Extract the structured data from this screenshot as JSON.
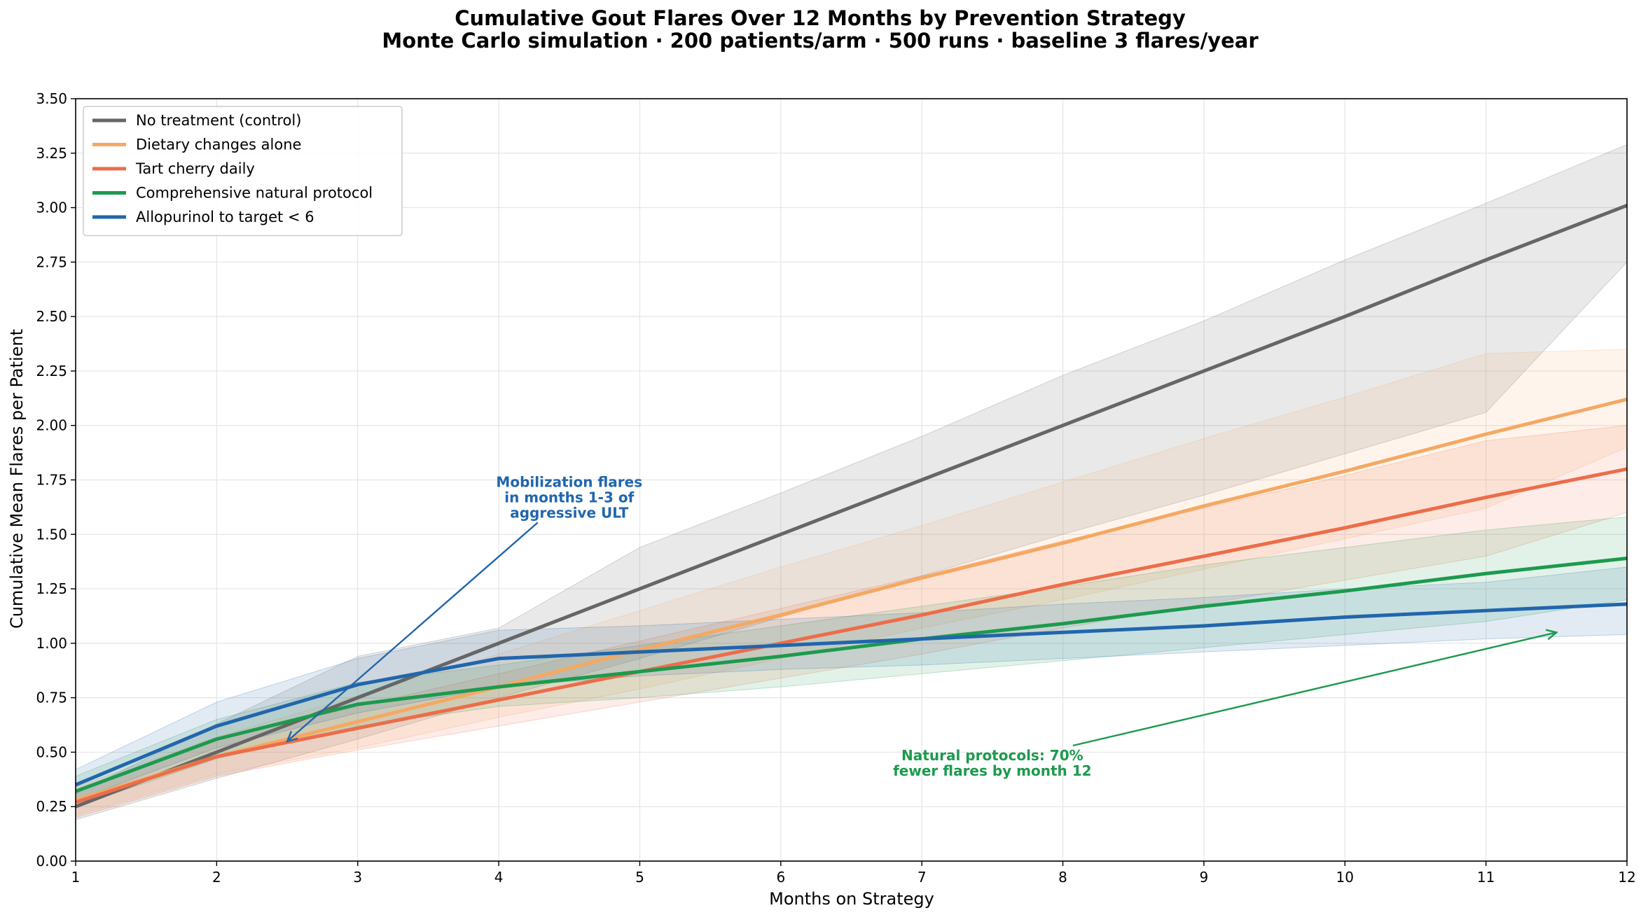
{
  "chart_data": {
    "type": "line",
    "title": "Cumulative Gout Flares Over 12 Months by Prevention Strategy",
    "subtitle": "Monte Carlo simulation · 200 patients/arm · 500 runs · baseline 3 flares/year",
    "xlabel": "Months on Strategy",
    "ylabel": "Cumulative Mean Flares per Patient",
    "xlim": [
      1,
      12
    ],
    "ylim": [
      0,
      3.5
    ],
    "xticks": [
      "1",
      "2",
      "3",
      "4",
      "5",
      "6",
      "7",
      "8",
      "9",
      "10",
      "11",
      "12"
    ],
    "yticks": [
      "0.00",
      "0.25",
      "0.50",
      "0.75",
      "1.00",
      "1.25",
      "1.50",
      "1.75",
      "2.00",
      "2.25",
      "2.50",
      "2.75",
      "3.00",
      "3.25",
      "3.50"
    ],
    "grid": true,
    "legend_position": "top-left",
    "x": [
      1,
      2,
      3,
      4,
      5,
      6,
      7,
      8,
      9,
      10,
      11,
      12
    ],
    "series": [
      {
        "name": "No treatment (control)",
        "color": "#666666",
        "values": [
          0.25,
          0.5,
          0.75,
          1.0,
          1.25,
          1.5,
          1.75,
          2.0,
          2.25,
          2.5,
          2.76,
          3.01
        ],
        "lower": [
          0.19,
          0.38,
          0.56,
          0.75,
          0.93,
          1.12,
          1.31,
          1.5,
          1.68,
          1.87,
          2.06,
          2.75
        ],
        "upper": [
          0.31,
          0.63,
          0.94,
          1.07,
          1.44,
          1.69,
          1.95,
          2.23,
          2.48,
          2.76,
          3.02,
          3.29
        ]
      },
      {
        "name": "Dietary changes alone",
        "color": "#f5a862",
        "values": [
          0.28,
          0.48,
          0.64,
          0.8,
          0.97,
          1.13,
          1.3,
          1.46,
          1.63,
          1.79,
          1.96,
          2.12
        ],
        "lower": [
          0.21,
          0.4,
          0.52,
          0.66,
          0.79,
          0.93,
          1.07,
          1.2,
          1.34,
          1.48,
          1.62,
          1.9
        ],
        "upper": [
          0.34,
          0.57,
          0.76,
          0.95,
          1.15,
          1.35,
          1.54,
          1.74,
          1.94,
          2.13,
          2.33,
          2.35
        ]
      },
      {
        "name": "Tart cherry daily",
        "color": "#ec6d49",
        "values": [
          0.27,
          0.48,
          0.61,
          0.74,
          0.87,
          1.0,
          1.13,
          1.27,
          1.4,
          1.53,
          1.67,
          1.8
        ],
        "lower": [
          0.2,
          0.39,
          0.51,
          0.62,
          0.73,
          0.84,
          0.95,
          1.07,
          1.18,
          1.29,
          1.4,
          1.6
        ],
        "upper": [
          0.33,
          0.56,
          0.71,
          0.86,
          1.01,
          1.16,
          1.31,
          1.47,
          1.62,
          1.77,
          1.93,
          2.0
        ]
      },
      {
        "name": "Comprehensive natural protocol",
        "color": "#1c9a4e",
        "values": [
          0.32,
          0.56,
          0.72,
          0.8,
          0.87,
          0.94,
          1.02,
          1.09,
          1.17,
          1.24,
          1.32,
          1.39
        ],
        "lower": [
          0.25,
          0.47,
          0.62,
          0.71,
          0.75,
          0.8,
          0.86,
          0.92,
          0.98,
          1.04,
          1.1,
          1.2
        ],
        "upper": [
          0.39,
          0.65,
          0.82,
          0.9,
          0.99,
          1.08,
          1.17,
          1.26,
          1.36,
          1.44,
          1.52,
          1.58
        ]
      },
      {
        "name": "Allopurinol to target < 6",
        "color": "#2166ac",
        "values": [
          0.35,
          0.62,
          0.81,
          0.93,
          0.96,
          0.99,
          1.02,
          1.05,
          1.08,
          1.12,
          1.15,
          1.18
        ],
        "lower": [
          0.28,
          0.52,
          0.68,
          0.8,
          0.85,
          0.88,
          0.9,
          0.93,
          0.96,
          0.99,
          1.02,
          1.04
        ],
        "upper": [
          0.42,
          0.73,
          0.93,
          1.06,
          1.08,
          1.11,
          1.14,
          1.18,
          1.21,
          1.25,
          1.28,
          1.35
        ]
      }
    ],
    "annotations": [
      {
        "lines": [
          "Mobilization flares",
          "in months 1-3 of",
          "aggressive ULT"
        ],
        "color": "#2166ac",
        "text_at": [
          4.5,
          1.67
        ],
        "arrow_to": [
          2.5,
          0.55
        ]
      },
      {
        "lines": [
          "Natural protocols: 70%",
          "fewer flares by month 12"
        ],
        "color": "#1c9a4e",
        "text_at": [
          7.5,
          0.45
        ],
        "arrow_to": [
          11.5,
          1.05
        ]
      }
    ]
  }
}
